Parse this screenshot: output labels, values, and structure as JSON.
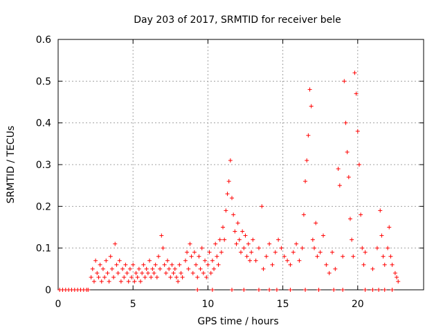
{
  "chart_data": {
    "type": "scatter",
    "title": "Day 203 of 2017, SRMTID for receiver bele",
    "xlabel": "GPS time / hours",
    "ylabel": "SRMTID / TECUs",
    "xlim": [
      0,
      24.4
    ],
    "ylim": [
      0,
      0.6
    ],
    "xticks": [
      0,
      5,
      10,
      15,
      20
    ],
    "xtick_labels": [
      "0",
      "5",
      "10",
      "15",
      "20"
    ],
    "yticks": [
      0,
      0.1,
      0.2,
      0.3,
      0.4,
      0.5,
      0.6
    ],
    "ytick_labels": [
      "0",
      "0.1",
      "0.2",
      "0.3",
      "0.4",
      "0.5",
      "0.6"
    ],
    "grid": true,
    "marker": "+",
    "series": [
      {
        "name": "SRMTID",
        "color": "#ff0000",
        "points": [
          [
            0.1,
            0
          ],
          [
            0.3,
            0
          ],
          [
            0.5,
            0
          ],
          [
            0.7,
            0
          ],
          [
            0.9,
            0
          ],
          [
            1.1,
            0
          ],
          [
            1.3,
            0
          ],
          [
            1.5,
            0
          ],
          [
            1.7,
            0
          ],
          [
            1.9,
            0
          ],
          [
            2.0,
            0
          ],
          [
            2.2,
            0.03
          ],
          [
            2.3,
            0.05
          ],
          [
            2.4,
            0.02
          ],
          [
            2.5,
            0.07
          ],
          [
            2.6,
            0.04
          ],
          [
            2.7,
            0.03
          ],
          [
            2.8,
            0.06
          ],
          [
            2.9,
            0.02
          ],
          [
            3.0,
            0.05
          ],
          [
            3.1,
            0.03
          ],
          [
            3.2,
            0.07
          ],
          [
            3.3,
            0.04
          ],
          [
            3.4,
            0.02
          ],
          [
            3.5,
            0.08
          ],
          [
            3.6,
            0.05
          ],
          [
            3.7,
            0.03
          ],
          [
            3.8,
            0.11
          ],
          [
            3.9,
            0.06
          ],
          [
            4.0,
            0.04
          ],
          [
            4.1,
            0.07
          ],
          [
            4.2,
            0.02
          ],
          [
            4.3,
            0.05
          ],
          [
            4.4,
            0.03
          ],
          [
            4.5,
            0.06
          ],
          [
            4.6,
            0.04
          ],
          [
            4.7,
            0.02
          ],
          [
            4.8,
            0.05
          ],
          [
            4.9,
            0.03
          ],
          [
            5.0,
            0.06
          ],
          [
            5.1,
            0.02
          ],
          [
            5.2,
            0.04
          ],
          [
            5.3,
            0.03
          ],
          [
            5.4,
            0.05
          ],
          [
            5.5,
            0.02
          ],
          [
            5.6,
            0.04
          ],
          [
            5.7,
            0.06
          ],
          [
            5.8,
            0.03
          ],
          [
            5.9,
            0.05
          ],
          [
            6.0,
            0.04
          ],
          [
            6.1,
            0.07
          ],
          [
            6.2,
            0.03
          ],
          [
            6.3,
            0.05
          ],
          [
            6.4,
            0.04
          ],
          [
            6.5,
            0.06
          ],
          [
            6.6,
            0.03
          ],
          [
            6.7,
            0.08
          ],
          [
            6.8,
            0.05
          ],
          [
            6.9,
            0.13
          ],
          [
            7.0,
            0.1
          ],
          [
            7.1,
            0.06
          ],
          [
            7.2,
            0.04
          ],
          [
            7.3,
            0.07
          ],
          [
            7.4,
            0.05
          ],
          [
            7.5,
            0.03
          ],
          [
            7.6,
            0.06
          ],
          [
            7.7,
            0.04
          ],
          [
            7.8,
            0.05
          ],
          [
            7.9,
            0.03
          ],
          [
            8.0,
            0.02
          ],
          [
            8.1,
            0.06
          ],
          [
            8.2,
            0.04
          ],
          [
            8.3,
            0.03
          ],
          [
            8.5,
            0.07
          ],
          [
            8.6,
            0.09
          ],
          [
            8.7,
            0.05
          ],
          [
            8.8,
            0.11
          ],
          [
            8.9,
            0.08
          ],
          [
            9.0,
            0.04
          ],
          [
            9.1,
            0.09
          ],
          [
            9.2,
            0.06
          ],
          [
            9.3,
            0.03
          ],
          [
            9.4,
            0.08
          ],
          [
            9.5,
            0.05
          ],
          [
            9.6,
            0.1
          ],
          [
            9.7,
            0.04
          ],
          [
            9.8,
            0.07
          ],
          [
            9.9,
            0.03
          ],
          [
            10.0,
            0.06
          ],
          [
            10.1,
            0.09
          ],
          [
            10.2,
            0.04
          ],
          [
            10.3,
            0.07
          ],
          [
            10.4,
            0.05
          ],
          [
            10.5,
            0.11
          ],
          [
            10.6,
            0.08
          ],
          [
            10.7,
            0.06
          ],
          [
            10.8,
            0.12
          ],
          [
            10.9,
            0.09
          ],
          [
            11.0,
            0.15
          ],
          [
            11.1,
            0.12
          ],
          [
            11.2,
            0.19
          ],
          [
            11.3,
            0.23
          ],
          [
            11.4,
            0.26
          ],
          [
            11.5,
            0.31
          ],
          [
            11.6,
            0.22
          ],
          [
            11.7,
            0.18
          ],
          [
            11.8,
            0.14
          ],
          [
            11.9,
            0.11
          ],
          [
            12.0,
            0.16
          ],
          [
            12.1,
            0.12
          ],
          [
            12.2,
            0.09
          ],
          [
            12.3,
            0.14
          ],
          [
            12.4,
            0.1
          ],
          [
            12.5,
            0.13
          ],
          [
            12.6,
            0.08
          ],
          [
            12.7,
            0.11
          ],
          [
            12.8,
            0.07
          ],
          [
            12.9,
            0.09
          ],
          [
            13.0,
            0.12
          ],
          [
            13.2,
            0.07
          ],
          [
            13.4,
            0.1
          ],
          [
            13.6,
            0.2
          ],
          [
            13.7,
            0.05
          ],
          [
            13.9,
            0.08
          ],
          [
            14.1,
            0.11
          ],
          [
            14.3,
            0.06
          ],
          [
            14.5,
            0.09
          ],
          [
            14.7,
            0.12
          ],
          [
            14.9,
            0.1
          ],
          [
            15.1,
            0.08
          ],
          [
            15.3,
            0.07
          ],
          [
            15.5,
            0.06
          ],
          [
            15.7,
            0.09
          ],
          [
            15.9,
            0.11
          ],
          [
            16.1,
            0.07
          ],
          [
            16.3,
            0.1
          ],
          [
            16.4,
            0.18
          ],
          [
            16.5,
            0.26
          ],
          [
            16.6,
            0.31
          ],
          [
            16.7,
            0.37
          ],
          [
            16.8,
            0.48
          ],
          [
            16.9,
            0.44
          ],
          [
            17.0,
            0.12
          ],
          [
            17.1,
            0.1
          ],
          [
            17.2,
            0.16
          ],
          [
            17.3,
            0.08
          ],
          [
            17.5,
            0.09
          ],
          [
            17.7,
            0.13
          ],
          [
            17.9,
            0.06
          ],
          [
            18.1,
            0.04
          ],
          [
            18.3,
            0.09
          ],
          [
            18.5,
            0.05
          ],
          [
            18.7,
            0.29
          ],
          [
            18.8,
            0.25
          ],
          [
            19.0,
            0.08
          ],
          [
            19.1,
            0.5
          ],
          [
            19.2,
            0.4
          ],
          [
            19.3,
            0.33
          ],
          [
            19.4,
            0.27
          ],
          [
            19.5,
            0.17
          ],
          [
            19.6,
            0.12
          ],
          [
            19.7,
            0.08
          ],
          [
            19.8,
            0.52
          ],
          [
            19.9,
            0.47
          ],
          [
            20.0,
            0.38
          ],
          [
            20.1,
            0.3
          ],
          [
            20.2,
            0.18
          ],
          [
            20.3,
            0.1
          ],
          [
            20.4,
            0.06
          ],
          [
            20.5,
            0.09
          ],
          [
            21.0,
            0.05
          ],
          [
            21.3,
            0.1
          ],
          [
            21.5,
            0.19
          ],
          [
            21.6,
            0.13
          ],
          [
            21.7,
            0.08
          ],
          [
            21.8,
            0.06
          ],
          [
            22.0,
            0.1
          ],
          [
            22.1,
            0.15
          ],
          [
            22.2,
            0.08
          ],
          [
            22.3,
            0.06
          ],
          [
            22.5,
            0.04
          ],
          [
            22.6,
            0.03
          ],
          [
            22.7,
            0.02
          ],
          [
            9.3,
            0
          ],
          [
            10.3,
            0
          ],
          [
            11.6,
            0
          ],
          [
            12.4,
            0
          ],
          [
            13.4,
            0
          ],
          [
            14.1,
            0
          ],
          [
            14.6,
            0
          ],
          [
            15.5,
            0
          ],
          [
            16.5,
            0
          ],
          [
            17.4,
            0
          ],
          [
            18.4,
            0
          ],
          [
            19.0,
            0
          ],
          [
            20.5,
            0
          ],
          [
            21.0,
            0
          ],
          [
            21.4,
            0
          ],
          [
            21.8,
            0
          ],
          [
            22.3,
            0
          ]
        ]
      }
    ]
  }
}
